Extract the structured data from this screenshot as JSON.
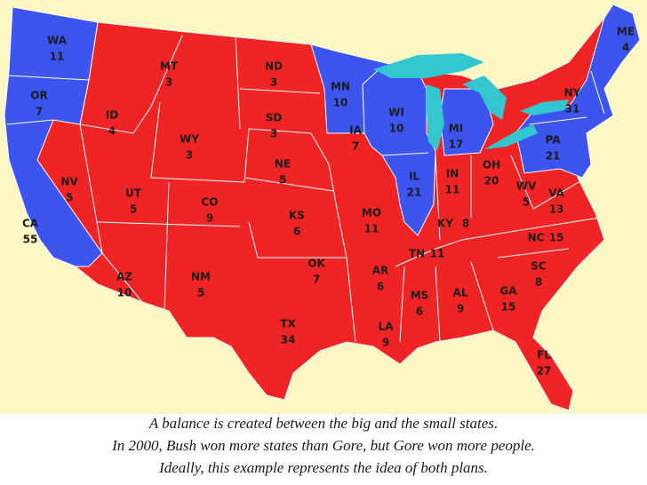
{
  "map": {
    "states": [
      {
        "abbr": "WA",
        "votes": 11,
        "color": "#3d55ee"
      },
      {
        "abbr": "OR",
        "votes": 7,
        "color": "#3d55ee"
      },
      {
        "abbr": "CA",
        "votes": 55,
        "color": "#3d55ee"
      },
      {
        "abbr": "NV",
        "votes": 5,
        "color": "#f02424"
      },
      {
        "abbr": "ID",
        "votes": 4,
        "color": "#f02424"
      },
      {
        "abbr": "MT",
        "votes": 3,
        "color": "#f02424"
      },
      {
        "abbr": "WY",
        "votes": 3,
        "color": "#f02424"
      },
      {
        "abbr": "UT",
        "votes": 5,
        "color": "#f02424"
      },
      {
        "abbr": "CO",
        "votes": 9,
        "color": "#f02424"
      },
      {
        "abbr": "AZ",
        "votes": 10,
        "color": "#f02424"
      },
      {
        "abbr": "NM",
        "votes": 5,
        "color": "#f02424"
      },
      {
        "abbr": "ND",
        "votes": 3,
        "color": "#f02424"
      },
      {
        "abbr": "SD",
        "votes": 3,
        "color": "#f02424"
      },
      {
        "abbr": "NE",
        "votes": 5,
        "color": "#f02424"
      },
      {
        "abbr": "KS",
        "votes": 6,
        "color": "#f02424"
      },
      {
        "abbr": "OK",
        "votes": 7,
        "color": "#f02424"
      },
      {
        "abbr": "TX",
        "votes": 34,
        "color": "#f02424"
      },
      {
        "abbr": "MN",
        "votes": 10,
        "color": "#3d55ee"
      },
      {
        "abbr": "IA",
        "votes": 7,
        "color": "#f02424"
      },
      {
        "abbr": "MO",
        "votes": 11,
        "color": "#f02424"
      },
      {
        "abbr": "AR",
        "votes": 6,
        "color": "#f02424"
      },
      {
        "abbr": "LA",
        "votes": 9,
        "color": "#f02424"
      },
      {
        "abbr": "WI",
        "votes": 10,
        "color": "#3d55ee"
      },
      {
        "abbr": "IL",
        "votes": 21,
        "color": "#3d55ee"
      },
      {
        "abbr": "MI",
        "votes": 17,
        "color": "#3d55ee"
      },
      {
        "abbr": "IN",
        "votes": 11,
        "color": "#f02424"
      },
      {
        "abbr": "OH",
        "votes": 20,
        "color": "#f02424"
      },
      {
        "abbr": "KY",
        "votes": 8,
        "color": "#f02424"
      },
      {
        "abbr": "TN",
        "votes": 11,
        "color": "#f02424"
      },
      {
        "abbr": "MS",
        "votes": 6,
        "color": "#f02424"
      },
      {
        "abbr": "AL",
        "votes": 9,
        "color": "#f02424"
      },
      {
        "abbr": "GA",
        "votes": 15,
        "color": "#f02424"
      },
      {
        "abbr": "SC",
        "votes": 8,
        "color": "#f02424"
      },
      {
        "abbr": "FL",
        "votes": 27,
        "color": "#f02424"
      },
      {
        "abbr": "NC",
        "votes": 15,
        "color": "#f02424"
      },
      {
        "abbr": "WV",
        "votes": 5,
        "color": "#f02424"
      },
      {
        "abbr": "VA",
        "votes": 13,
        "color": "#f02424"
      },
      {
        "abbr": "PA",
        "votes": 21,
        "color": "#3d55ee"
      },
      {
        "abbr": "NY",
        "votes": 31,
        "color": "#3d55ee"
      },
      {
        "abbr": "ME",
        "votes": 4,
        "color": "#3d55ee"
      }
    ],
    "caption": [
      "A balance is created between the big and the small states.",
      "In 2000, Bush won more states than Gore, but Gore won more people.",
      "Ideally, this example represents the idea of both plans."
    ]
  }
}
